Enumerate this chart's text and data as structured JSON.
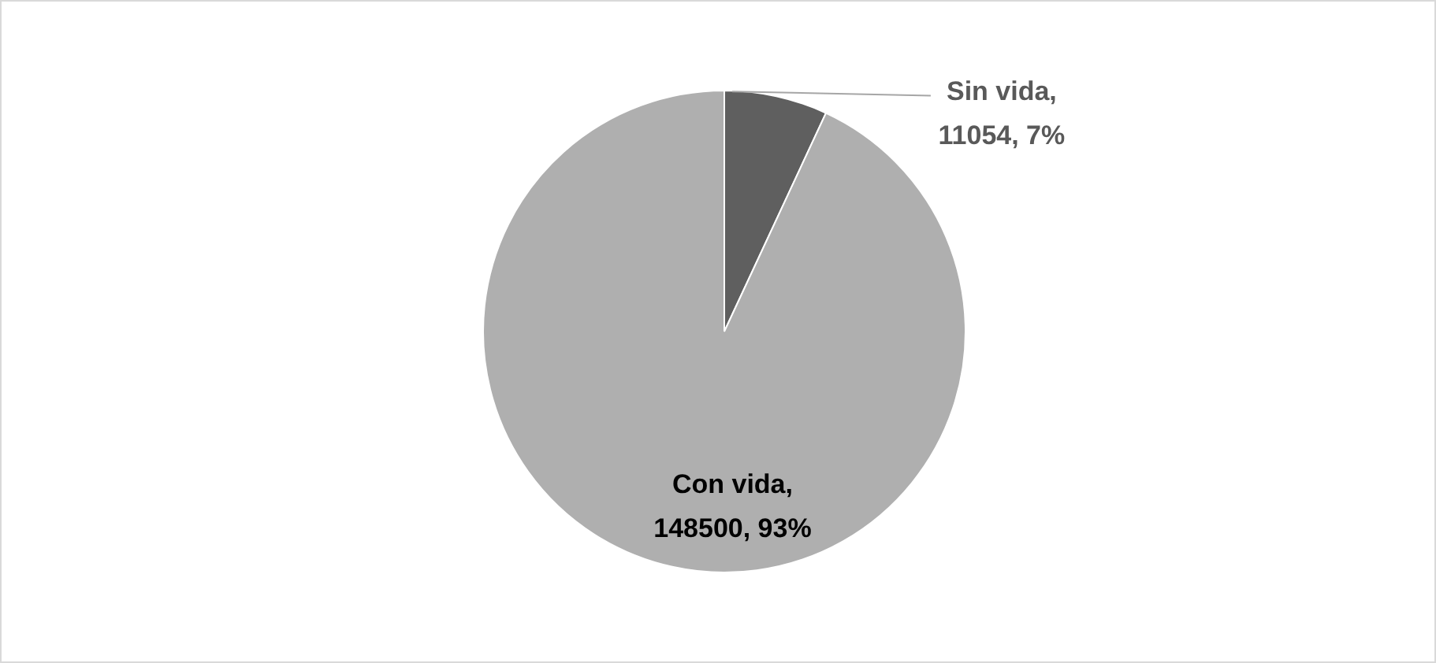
{
  "chart_data": {
    "type": "pie",
    "categories": [
      "Sin vida",
      "Con vida"
    ],
    "values": [
      11054,
      148500
    ],
    "colors": [
      "#5f5f5f",
      "#afafaf"
    ],
    "value_labels": [
      ", 11054, 7%",
      ", 148500, 93%"
    ],
    "legend": false
  }
}
